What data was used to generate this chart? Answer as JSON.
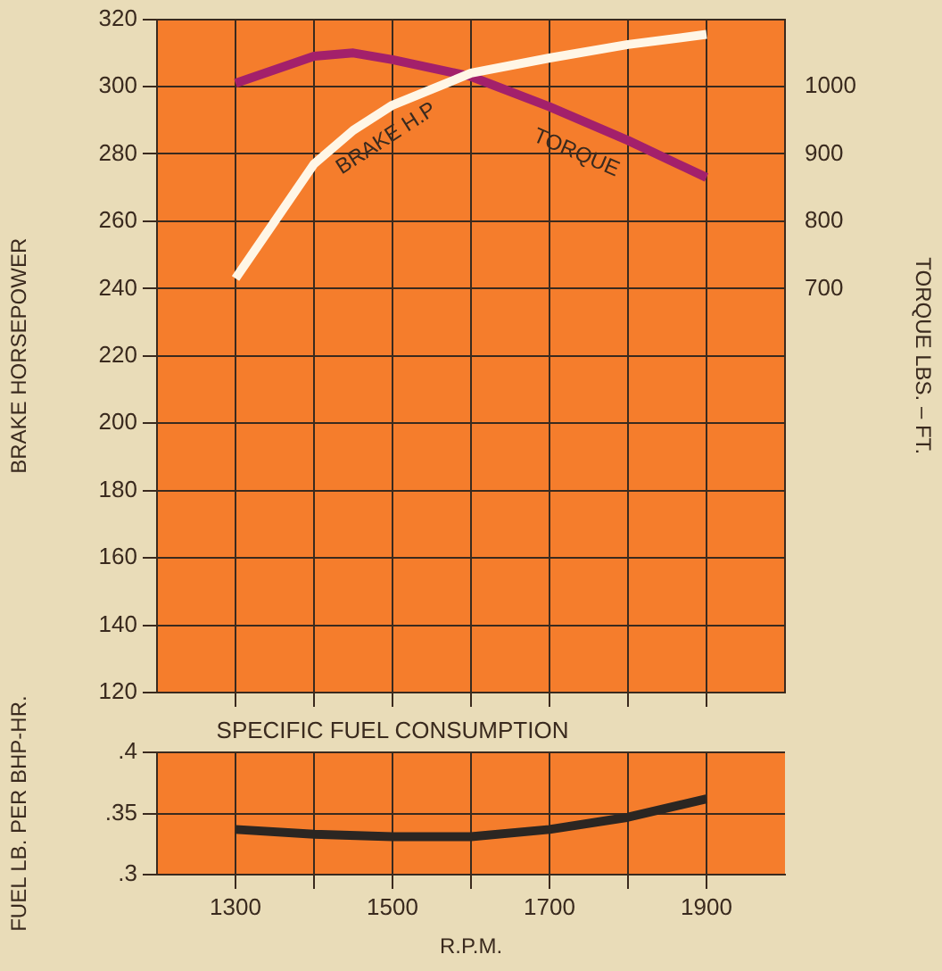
{
  "chart_data": [
    {
      "type": "line",
      "ylabel": "BRAKE HORSEPOWER",
      "y2label": "TORQUE LBS. – FT.",
      "grid": true,
      "tick_labels": "y",
      "xlim": [
        1200,
        2000
      ],
      "xticks": [
        1300,
        1400,
        1500,
        1600,
        1700,
        1800,
        1900
      ],
      "ylim": [
        120,
        320
      ],
      "yticks": [
        120,
        140,
        160,
        180,
        200,
        220,
        240,
        260,
        280,
        300,
        320
      ],
      "y2lim": [
        100,
        1100
      ],
      "y2ticks": [
        700,
        800,
        900,
        1000
      ],
      "x": [
        1300,
        1400,
        1450,
        1500,
        1600,
        1700,
        1800,
        1900
      ],
      "series": [
        {
          "name": "BRAKE H.P",
          "color": "#fff6e6",
          "values": [
            243,
            277,
            287,
            294.5,
            304,
            308.5,
            312.5,
            315.5
          ]
        },
        {
          "name": "TORQUE",
          "color": "#a3206b",
          "axis": "y2",
          "values": [
            1005,
            1045,
            1050,
            1040,
            1015,
            970,
            920,
            865
          ]
        }
      ]
    },
    {
      "type": "line",
      "title": "SPECIFIC FUEL CONSUMPTION",
      "xlabel": "R.P.M.",
      "ylabel": "FUEL LB. PER BHP-HR.",
      "grid": true,
      "xlim": [
        1200,
        2000
      ],
      "xticks": [
        1300,
        {
          "value": 1400,
          "label": null
        },
        1500,
        {
          "value": 1600,
          "label": null
        },
        1700,
        {
          "value": 1800,
          "label": null
        },
        1900
      ],
      "ylim": [
        0.3,
        0.4
      ],
      "yticks": [
        {
          "value": 0.3,
          "label": ".3"
        },
        {
          "value": 0.35,
          "label": ".35"
        },
        {
          "value": 0.4,
          "label": ".4"
        }
      ],
      "x": [
        1300,
        1400,
        1500,
        1600,
        1700,
        1800,
        1900
      ],
      "series": [
        {
          "color": "#2b2622",
          "values": [
            0.337,
            0.333,
            0.331,
            0.331,
            0.337,
            0.347,
            0.362
          ]
        }
      ]
    }
  ]
}
